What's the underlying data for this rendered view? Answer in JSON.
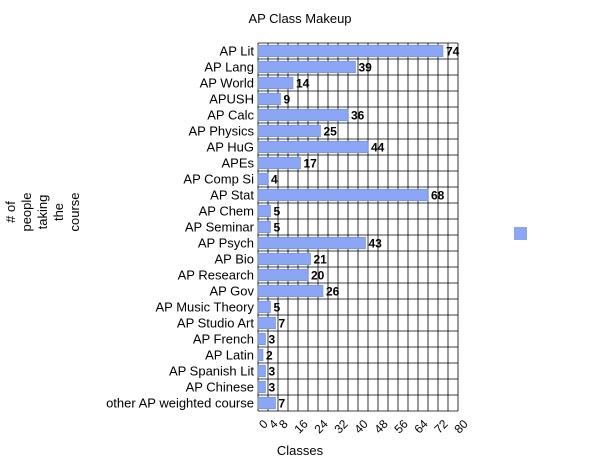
{
  "chart_data": {
    "type": "bar",
    "orientation": "horizontal",
    "title": "AP Class Makeup",
    "xlabel": "Classes",
    "ylabel_lines": [
      "# of",
      "people",
      "taking",
      "the",
      "course"
    ],
    "categories": [
      "AP Lit",
      "AP Lang",
      "AP World",
      "APUSH",
      "AP Calc",
      "AP Physics",
      "AP HuG",
      "APEs",
      "AP Comp Si",
      "AP Stat",
      "AP Chem",
      "AP Seminar",
      "AP Psych",
      "AP Bio",
      "AP Research",
      "AP Gov",
      "AP Music Theory",
      "AP Studio Art",
      "AP French",
      "AP Latin",
      "AP Spanish Lit",
      "AP Chinese",
      "other AP weighted course"
    ],
    "values": [
      74,
      39,
      14,
      9,
      36,
      25,
      44,
      17,
      4,
      68,
      5,
      5,
      43,
      21,
      20,
      26,
      5,
      7,
      3,
      2,
      3,
      3,
      7
    ],
    "xlim": [
      0,
      80
    ],
    "xticks": [
      "0",
      "4",
      "8",
      "16",
      "24",
      "32",
      "40",
      "48",
      "56",
      "64",
      "72",
      "80"
    ],
    "grid": true,
    "legend_position": "right",
    "colors": {
      "bar": "#8aa6f5",
      "bar_stroke": "#6d8ee8",
      "grid": "#000000",
      "legend_swatch": "#8aa6f5"
    }
  }
}
